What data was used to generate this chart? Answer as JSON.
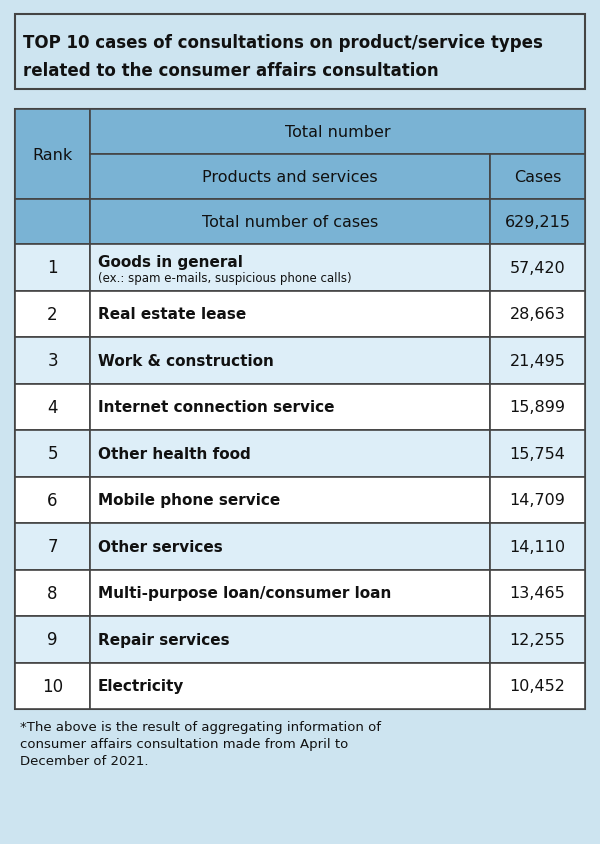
{
  "title": "TOP 10 cases of consultations on product/service types\nrelated to the consumer affairs consultation",
  "title_bg": "#cde4f0",
  "table_outer_bg": "#ffffff",
  "header_bg": "#7ab3d4",
  "row_bg_light": "#ddeef8",
  "row_bg_white": "#ffffff",
  "outer_bg": "#cde4f0",
  "border_color": "#444444",
  "rows": [
    {
      "rank": "1",
      "product": "Goods in general",
      "sub": "(ex.: spam e-mails, suspicious phone calls)",
      "cases": "57,420"
    },
    {
      "rank": "2",
      "product": "Real estate lease",
      "sub": "",
      "cases": "28,663"
    },
    {
      "rank": "3",
      "product": "Work & construction",
      "sub": "",
      "cases": "21,495"
    },
    {
      "rank": "4",
      "product": "Internet connection service",
      "sub": "",
      "cases": "15,899"
    },
    {
      "rank": "5",
      "product": "Other health food",
      "sub": "",
      "cases": "15,754"
    },
    {
      "rank": "6",
      "product": "Mobile phone service",
      "sub": "",
      "cases": "14,709"
    },
    {
      "rank": "7",
      "product": "Other services",
      "sub": "",
      "cases": "14,110"
    },
    {
      "rank": "8",
      "product": "Multi-purpose loan/consumer loan",
      "sub": "",
      "cases": "13,465"
    },
    {
      "rank": "9",
      "product": "Repair services",
      "sub": "",
      "cases": "12,255"
    },
    {
      "rank": "10",
      "product": "Electricity",
      "sub": "",
      "cases": "10,452"
    }
  ],
  "footnote_lines": [
    "*The above is the result of aggregating information of",
    "consumer affairs consultation made from April to",
    "December of 2021."
  ]
}
